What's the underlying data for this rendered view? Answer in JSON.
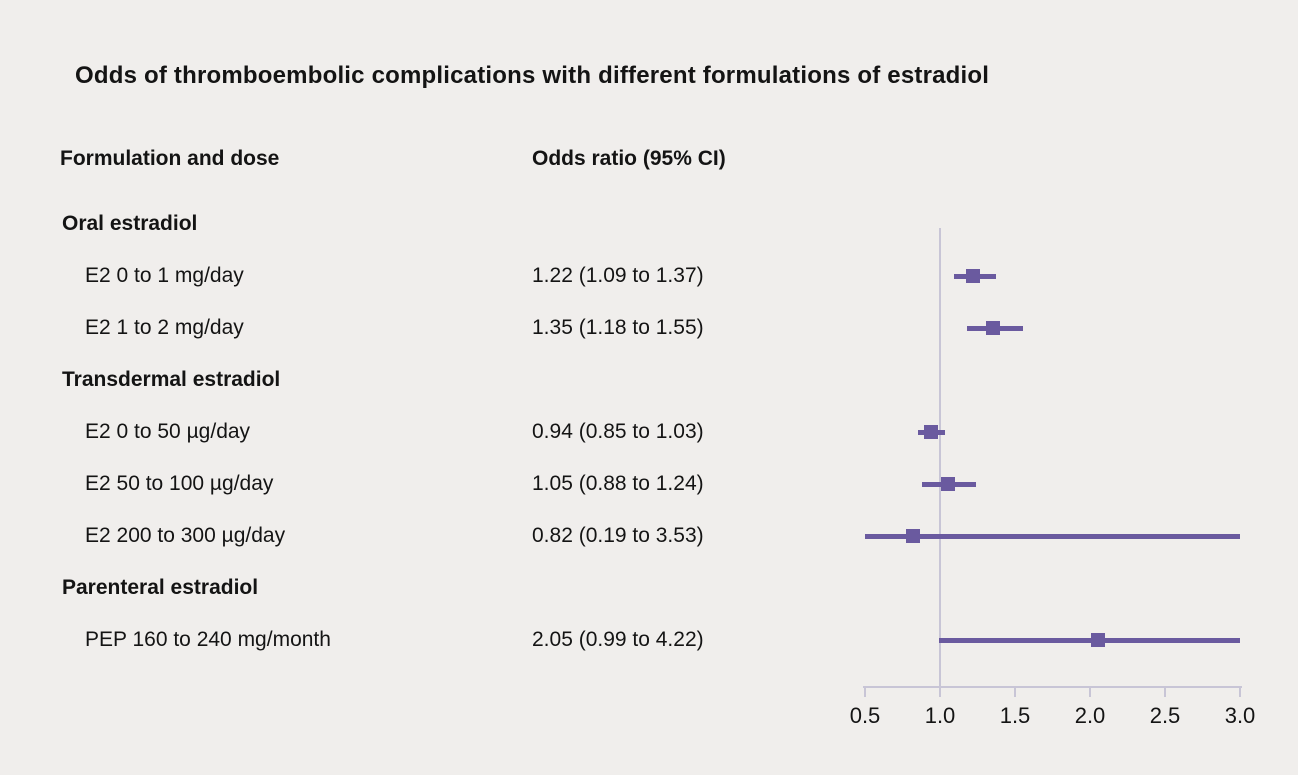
{
  "title": "Odds of thromboembolic complications with different formulations of estradiol",
  "columns": {
    "formulation": "Formulation and dose",
    "odds": "Odds ratio (95% CI)"
  },
  "colors": {
    "background": "#f0eeec",
    "accent": "#6a5a9f",
    "axis": "#c8c5d6",
    "text": "#141414"
  },
  "chart_data": {
    "type": "forest",
    "title": "Odds of thromboembolic complications with different formulations of estradiol",
    "xlabel": "Odds ratio",
    "axis": {
      "min": 0.5,
      "max": 3.0,
      "reference": 1.0,
      "scale": "linear",
      "ticks": [
        {
          "value": 0.5,
          "label": "0.5"
        },
        {
          "value": 1.0,
          "label": "1.0"
        },
        {
          "value": 1.5,
          "label": "1.5"
        },
        {
          "value": 2.0,
          "label": "2.0"
        },
        {
          "value": 2.5,
          "label": "2.5"
        },
        {
          "value": 3.0,
          "label": "3.0"
        }
      ]
    },
    "rows": [
      {
        "kind": "group",
        "label": "Oral estradiol"
      },
      {
        "kind": "item",
        "label": "E2 0 to 1 mg/day",
        "or_text": "1.22 (1.09 to 1.37)",
        "or": 1.22,
        "lo": 1.09,
        "hi": 1.37
      },
      {
        "kind": "item",
        "label": "E2 1 to 2 mg/day",
        "or_text": "1.35 (1.18 to 1.55)",
        "or": 1.35,
        "lo": 1.18,
        "hi": 1.55
      },
      {
        "kind": "group",
        "label": "Transdermal estradiol"
      },
      {
        "kind": "item",
        "label": "E2 0 to 50 µg/day",
        "or_text": "0.94 (0.85 to 1.03)",
        "or": 0.94,
        "lo": 0.85,
        "hi": 1.03
      },
      {
        "kind": "item",
        "label": "E2 50 to 100 µg/day",
        "or_text": "1.05 (0.88 to 1.24)",
        "or": 1.05,
        "lo": 0.88,
        "hi": 1.24
      },
      {
        "kind": "item",
        "label": "E2 200 to 300 µg/day",
        "or_text": "0.82 (0.19 to 3.53)",
        "or": 0.82,
        "lo": 0.19,
        "hi": 3.53
      },
      {
        "kind": "group",
        "label": "Parenteral estradiol"
      },
      {
        "kind": "item",
        "label": "PEP 160 to 240 mg/month",
        "or_text": "2.05 (0.99 to 4.22)",
        "or": 2.05,
        "lo": 0.99,
        "hi": 4.22
      }
    ]
  }
}
